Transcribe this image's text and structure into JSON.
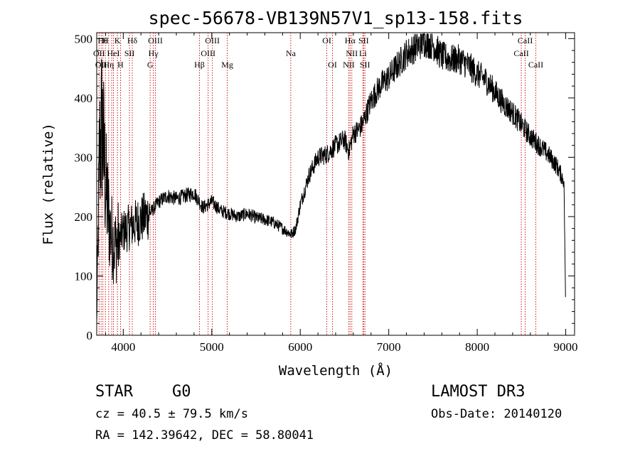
{
  "chart_data": {
    "type": "line",
    "title": "spec-56678-VB139N57V1_sp13-158.fits",
    "xlabel": "Wavelength (Å)",
    "ylabel": "Flux (relative)",
    "xlim": [
      3700,
      9100
    ],
    "ylim": [
      0,
      510
    ],
    "xticks": [
      4000,
      5000,
      6000,
      7000,
      8000,
      9000
    ],
    "yticks": [
      0,
      100,
      200,
      300,
      400,
      500
    ],
    "x_tick_labels": [
      "4000",
      "5000",
      "6000",
      "7000",
      "8000",
      "9000"
    ],
    "y_tick_labels": [
      "0",
      "100",
      "200",
      "300",
      "400",
      "500"
    ],
    "line_color": "#000000",
    "marker_color": "#cc0000",
    "spectrum_anchors": {
      "x": [
        3700,
        3730,
        3760,
        3800,
        3850,
        3900,
        3950,
        4000,
        4100,
        4200,
        4300,
        4400,
        4500,
        4600,
        4700,
        4800,
        4900,
        5000,
        5100,
        5200,
        5300,
        5400,
        5500,
        5600,
        5700,
        5800,
        5850,
        5900,
        5950,
        6000,
        6050,
        6100,
        6150,
        6200,
        6300,
        6400,
        6500,
        6550,
        6600,
        6650,
        6700,
        6750,
        6800,
        6900,
        7000,
        7100,
        7200,
        7300,
        7400,
        7500,
        7600,
        7700,
        7800,
        7900,
        8000,
        8100,
        8200,
        8300,
        8400,
        8500,
        8600,
        8700,
        8800,
        8900,
        8980,
        9000
      ],
      "y": [
        20,
        300,
        360,
        250,
        180,
        150,
        160,
        175,
        185,
        195,
        205,
        225,
        235,
        230,
        235,
        240,
        215,
        225,
        210,
        205,
        200,
        205,
        198,
        195,
        190,
        180,
        175,
        170,
        180,
        220,
        245,
        270,
        285,
        300,
        305,
        320,
        330,
        310,
        340,
        345,
        355,
        375,
        395,
        420,
        435,
        455,
        475,
        485,
        495,
        490,
        470,
        465,
        465,
        455,
        440,
        430,
        410,
        390,
        375,
        355,
        335,
        320,
        305,
        285,
        260,
        40
      ]
    },
    "line_markers": [
      {
        "wavelength": 3727,
        "label": "OII",
        "row": 2
      },
      {
        "wavelength": 3750,
        "label": "OII",
        "row": 3
      },
      {
        "wavelength": 3770,
        "label": "Hθ",
        "row": 1
      },
      {
        "wavelength": 3798,
        "label": "H",
        "row": 1
      },
      {
        "wavelength": 3835,
        "label": "Hη",
        "row": 3
      },
      {
        "wavelength": 3869,
        "label": "",
        "row": 0
      },
      {
        "wavelength": 3889,
        "label": "HeI",
        "row": 2
      },
      {
        "wavelength": 3934,
        "label": "K",
        "row": 1
      },
      {
        "wavelength": 3969,
        "label": "H",
        "row": 3
      },
      {
        "wavelength": 4070,
        "label": "SII",
        "row": 2
      },
      {
        "wavelength": 4102,
        "label": "Hδ",
        "row": 1
      },
      {
        "wavelength": 4304,
        "label": "G",
        "row": 3
      },
      {
        "wavelength": 4340,
        "label": "Hγ",
        "row": 2
      },
      {
        "wavelength": 4363,
        "label": "OIII",
        "row": 1
      },
      {
        "wavelength": 4861,
        "label": "Hβ",
        "row": 3
      },
      {
        "wavelength": 4959,
        "label": "OIII",
        "row": 2
      },
      {
        "wavelength": 5007,
        "label": "OIII",
        "row": 1
      },
      {
        "wavelength": 5175,
        "label": "Mg",
        "row": 3
      },
      {
        "wavelength": 5893,
        "label": "Na",
        "row": 2
      },
      {
        "wavelength": 6300,
        "label": "OI",
        "row": 1
      },
      {
        "wavelength": 6364,
        "label": "OI",
        "row": 3
      },
      {
        "wavelength": 6548,
        "label": "NII",
        "row": 3
      },
      {
        "wavelength": 6563,
        "label": "Hα",
        "row": 1
      },
      {
        "wavelength": 6583,
        "label": "NII",
        "row": 2
      },
      {
        "wavelength": 6708,
        "label": "Li",
        "row": 2
      },
      {
        "wavelength": 6716,
        "label": "SII",
        "row": 1
      },
      {
        "wavelength": 6731,
        "label": "SII",
        "row": 3
      },
      {
        "wavelength": 8498,
        "label": "CaII",
        "row": 2
      },
      {
        "wavelength": 8542,
        "label": "CaII",
        "row": 1
      },
      {
        "wavelength": 8662,
        "label": "CaII",
        "row": 3
      }
    ]
  },
  "info": {
    "object_class": "STAR",
    "subclass": "G0",
    "survey": "LAMOST DR3",
    "redshift": "cz = 40.5 ± 79.5 km/s",
    "obs_date": "Obs-Date: 20140120",
    "coordinates": "RA = 142.39642, DEC =  58.80041"
  }
}
